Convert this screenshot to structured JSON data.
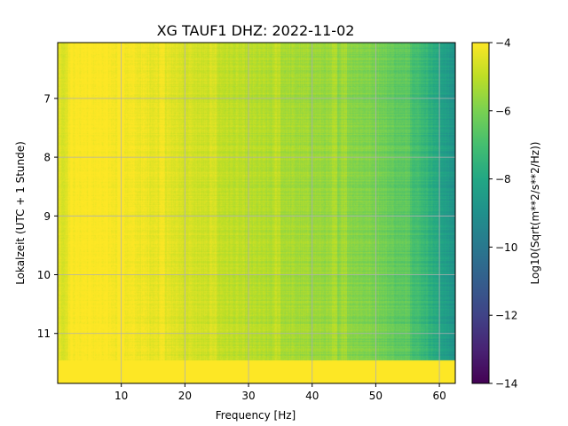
{
  "chart_data": {
    "type": "heatmap",
    "title": "XG TAUF1  DHZ: 2022-11-02",
    "xlabel": "Frequency [Hz]",
    "ylabel": "Lokalzeit (UTC + 1 Stunde)",
    "colorbar_label": "Log10(Sqrt(m**2/s**2/Hz))",
    "colormap": "viridis",
    "xlim": [
      0.0,
      62.5
    ],
    "ylim": [
      11.85,
      6.05
    ],
    "x_ticks": [
      10,
      20,
      30,
      40,
      50,
      60
    ],
    "y_ticks": [
      7,
      8,
      9,
      10,
      11
    ],
    "color_range": [
      -14,
      -4
    ],
    "colorbar_ticks": [
      -4,
      -6,
      -8,
      -10,
      -12,
      -14
    ],
    "grid": true,
    "saturated_band_from_hour": 11.45,
    "notable_frequency_lines_hz": [
      10,
      16.5,
      24.5,
      34.5,
      43.5,
      45,
      55
    ],
    "mean_level_by_frequency": {
      "frequency_hz": [
        0,
        1,
        2,
        5,
        10,
        15,
        20,
        25,
        30,
        35,
        40,
        45,
        50,
        55,
        58,
        60,
        62.5
      ],
      "log10_amplitude": [
        -4.3,
        -4.6,
        -4.0,
        -4.0,
        -4.1,
        -4.3,
        -4.6,
        -4.9,
        -5.1,
        -5.3,
        -5.5,
        -5.7,
        -6.0,
        -6.7,
        -7.4,
        -8.1,
        -8.9
      ]
    }
  }
}
